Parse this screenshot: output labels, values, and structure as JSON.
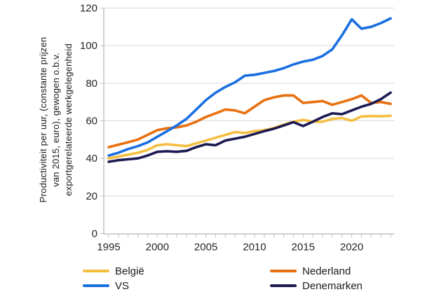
{
  "chart_data": {
    "type": "line",
    "title": "",
    "ylabel_lines": [
      "Productiviteit per uur, (constante prijzen",
      "van 2015, euro), gewogen o.b.v.",
      "exportgerelateerde werkgelegenheid"
    ],
    "x": [
      1995,
      1996,
      1997,
      1998,
      1999,
      2000,
      2001,
      2002,
      2003,
      2004,
      2005,
      2006,
      2007,
      2008,
      2009,
      2010,
      2011,
      2012,
      2013,
      2014,
      2015,
      2016,
      2017,
      2018,
      2019,
      2020,
      2021,
      2022,
      2023,
      2024
    ],
    "x_tick_label_years": [
      1995,
      2000,
      2005,
      2010,
      2015,
      2020
    ],
    "x_tick_labels": [
      "1995",
      "2000",
      "2005",
      "2010",
      "2015",
      "2020"
    ],
    "ylim": [
      0,
      120
    ],
    "yticks": [
      0,
      20,
      40,
      60,
      80,
      100,
      120
    ],
    "grid": true,
    "legend_position": "bottom",
    "series": [
      {
        "name": "België",
        "color": "#F5BE41",
        "values": [
          40,
          41,
          42,
          43,
          44.5,
          47,
          47.5,
          47,
          46.5,
          48,
          49.5,
          51,
          52.5,
          54,
          53.5,
          54.5,
          55,
          56.2,
          58,
          59.5,
          60.5,
          59.5,
          59.5,
          61,
          61.5,
          60,
          62.3,
          62.5,
          62.4,
          62.7
        ]
      },
      {
        "name": "Nederland",
        "color": "#E8700F",
        "values": [
          46,
          47.3,
          48.6,
          50,
          52.5,
          55,
          56,
          56.5,
          57.5,
          59.5,
          62,
          64,
          66,
          65.5,
          64,
          67.5,
          71,
          72.5,
          73.5,
          73.5,
          69.5,
          70,
          70.5,
          68.5,
          70,
          71.5,
          73.5,
          69.5,
          70,
          69
        ]
      },
      {
        "name": "VS",
        "color": "#1A6FE0",
        "values": [
          41.5,
          43,
          45,
          46.5,
          48.5,
          51.5,
          54.5,
          57.5,
          61,
          66,
          71,
          75,
          78,
          80.5,
          84,
          84.5,
          85.5,
          86.5,
          88,
          90,
          91.5,
          92.5,
          94.5,
          98,
          105.5,
          114,
          109,
          110,
          112,
          114.5
        ]
      },
      {
        "name": "Denemarken",
        "color": "#1C1A52",
        "values": [
          38.2,
          39,
          39.5,
          40,
          41.5,
          43.5,
          43.8,
          43.5,
          44,
          46,
          47.5,
          47,
          49.5,
          50.5,
          51.5,
          53,
          54.5,
          55.8,
          57.5,
          59.3,
          57.2,
          59.5,
          62,
          64,
          63.5,
          65.5,
          67.5,
          69,
          71.5,
          75
        ]
      }
    ]
  },
  "colors": {
    "gridline": "#D9D9D9",
    "axis": "#A6A6A6",
    "tick": "#BFBFBF",
    "text": "#262626"
  }
}
